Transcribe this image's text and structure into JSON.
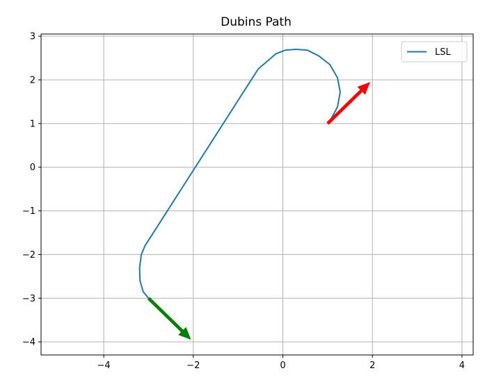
{
  "chart_data": {
    "type": "line",
    "title": "Dubins Path",
    "xlabel": "",
    "ylabel": "",
    "xlim": [
      -5.4,
      4.25
    ],
    "ylim": [
      -4.3,
      3.05
    ],
    "xticks": [
      -4,
      -2,
      0,
      2,
      4
    ],
    "yticks": [
      -4,
      -3,
      -2,
      -1,
      0,
      1,
      2,
      3
    ],
    "xtick_labels": [
      "−4",
      "−2",
      "0",
      "2",
      "4"
    ],
    "ytick_labels": [
      "−4",
      "−3",
      "−2",
      "−1",
      "0",
      "1",
      "2",
      "3"
    ],
    "grid": true,
    "legend": {
      "placement": "upper-right",
      "entries": [
        "LSL"
      ]
    },
    "series": [
      {
        "name": "LSL",
        "color": "#1f77b4",
        "points": [
          [
            -3.0,
            -3.0
          ],
          [
            -3.12,
            -2.85
          ],
          [
            -3.19,
            -2.6
          ],
          [
            -3.2,
            -2.3
          ],
          [
            -3.16,
            -2.0
          ],
          [
            -3.08,
            -1.8
          ],
          [
            -0.55,
            2.25
          ],
          [
            -0.15,
            2.6
          ],
          [
            0.05,
            2.68
          ],
          [
            0.3,
            2.7
          ],
          [
            0.55,
            2.68
          ],
          [
            0.8,
            2.55
          ],
          [
            1.05,
            2.35
          ],
          [
            1.22,
            2.05
          ],
          [
            1.28,
            1.72
          ],
          [
            1.22,
            1.38
          ],
          [
            1.1,
            1.15
          ],
          [
            1.0,
            1.0
          ]
        ]
      }
    ],
    "arrows": [
      {
        "name": "start",
        "from": [
          -3.0,
          -3.0
        ],
        "to": [
          -2.05,
          -3.95
        ],
        "color": "#008000"
      },
      {
        "name": "goal",
        "from": [
          1.0,
          1.0
        ],
        "to": [
          1.95,
          1.95
        ],
        "color": "#ff0000"
      }
    ]
  }
}
